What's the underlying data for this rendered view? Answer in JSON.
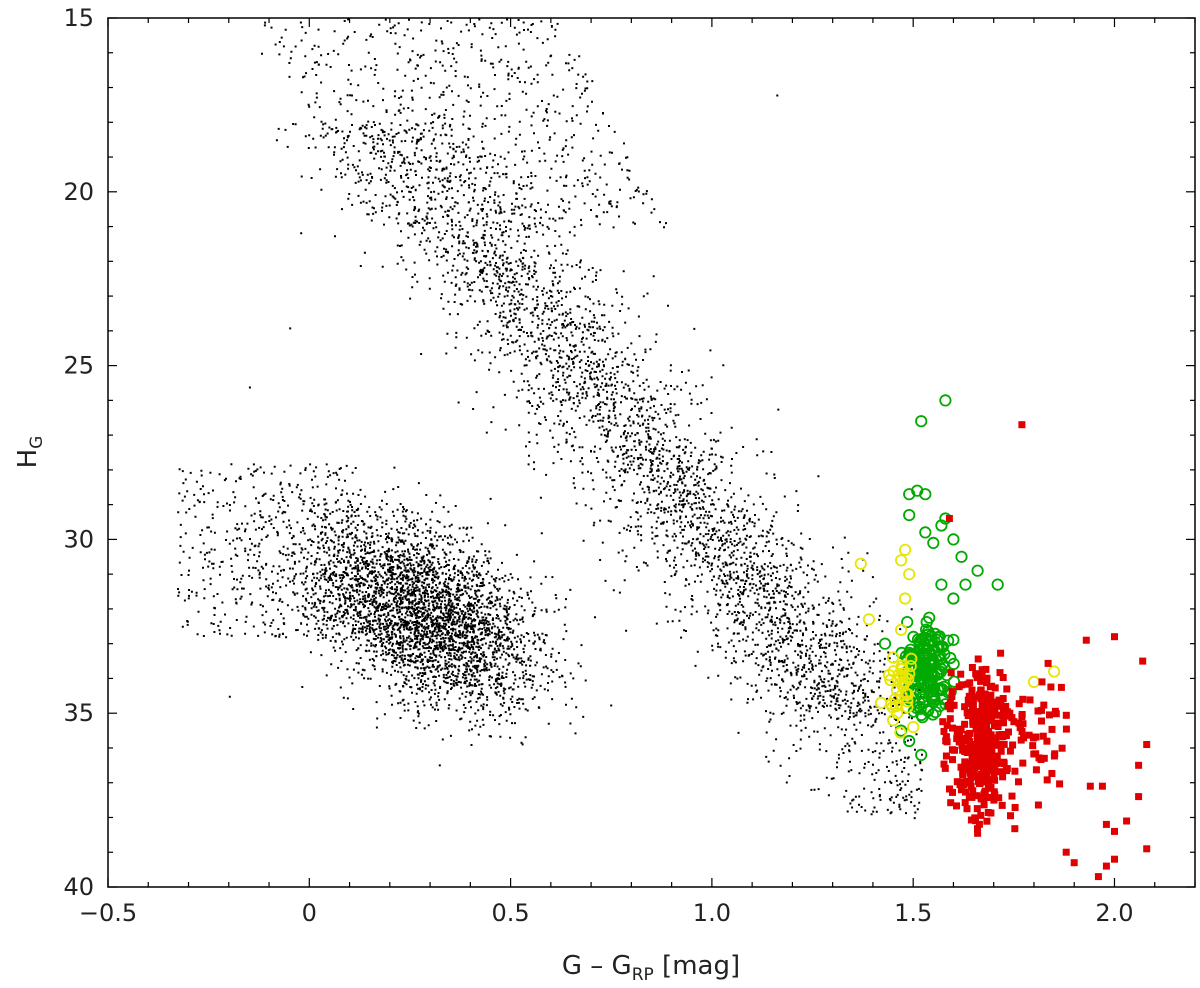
{
  "chart_data": {
    "type": "scatter",
    "title": "",
    "xlabel": {
      "base": "G – G",
      "sub": "RP",
      "unit": " [mag]"
    },
    "ylabel": {
      "base": "H",
      "sub": "G"
    },
    "xlim": [
      -0.5,
      2.2
    ],
    "ylim": [
      40,
      15
    ],
    "y_inverted": true,
    "legend": "none",
    "grid": false,
    "x_ticks": [
      {
        "value": -0.5,
        "label": "−0.5"
      },
      {
        "value": 0,
        "label": "0"
      },
      {
        "value": 0.5,
        "label": "0.5"
      },
      {
        "value": 1.0,
        "label": "1.0"
      },
      {
        "value": 1.5,
        "label": "1.5"
      },
      {
        "value": 2.0,
        "label": "2.0"
      }
    ],
    "y_ticks": [
      {
        "value": 15,
        "label": "15"
      },
      {
        "value": 20,
        "label": "20"
      },
      {
        "value": 25,
        "label": "25"
      },
      {
        "value": 30,
        "label": "30"
      },
      {
        "value": 35,
        "label": "35"
      },
      {
        "value": 40,
        "label": "40"
      }
    ],
    "series": [
      {
        "marker": "dot",
        "color": "#000000",
        "approx_count": 30000,
        "regions": [
          {
            "kind": "main-sequence",
            "x_range": [
              0.4,
              1.5
            ],
            "y_range": [
              20.5,
              35.0
            ],
            "note": "dense diagonal band"
          },
          {
            "kind": "upper-sparse",
            "x_range": [
              -0.1,
              0.9
            ],
            "y_range": [
              15.0,
              21.0
            ]
          },
          {
            "kind": "lower-left-blob",
            "x_range": [
              -0.35,
              0.8
            ],
            "y_range": [
              27.5,
              38.5
            ]
          }
        ],
        "outliers": [
          {
            "x": 1.16,
            "y": 17.2
          },
          {
            "x": 0.53,
            "y": 15.1
          },
          {
            "x": 0.35,
            "y": 15.1
          },
          {
            "x": -0.12,
            "y": 16.0
          },
          {
            "x": -0.05,
            "y": 23.9
          },
          {
            "x": -0.15,
            "y": 25.6
          },
          {
            "x": 0.6,
            "y": 15.2
          },
          {
            "x": -0.2,
            "y": 34.5
          }
        ]
      },
      {
        "marker": "open-circle",
        "color": "#00aa00",
        "points": [
          {
            "x": 1.58,
            "y": 26.0
          },
          {
            "x": 1.52,
            "y": 26.6
          },
          {
            "x": 1.49,
            "y": 28.7
          },
          {
            "x": 1.51,
            "y": 28.6
          },
          {
            "x": 1.53,
            "y": 28.7
          },
          {
            "x": 1.58,
            "y": 29.4
          },
          {
            "x": 1.49,
            "y": 29.3
          },
          {
            "x": 1.53,
            "y": 29.8
          },
          {
            "x": 1.57,
            "y": 29.6
          },
          {
            "x": 1.6,
            "y": 30.0
          },
          {
            "x": 1.55,
            "y": 30.1
          },
          {
            "x": 1.62,
            "y": 30.5
          },
          {
            "x": 1.66,
            "y": 30.9
          },
          {
            "x": 1.71,
            "y": 31.3
          },
          {
            "x": 1.63,
            "y": 31.3
          },
          {
            "x": 1.57,
            "y": 31.3
          },
          {
            "x": 1.6,
            "y": 31.7
          },
          {
            "x": 1.54,
            "y": 33.3
          },
          {
            "x": 1.43,
            "y": 33.0
          },
          {
            "x": 1.47,
            "y": 35.5
          },
          {
            "x": 1.52,
            "y": 36.2
          },
          {
            "x": 1.49,
            "y": 35.8
          }
        ],
        "cluster": {
          "x_range": [
            1.44,
            1.72
          ],
          "y_range": [
            31.5,
            36.5
          ],
          "approx_count": 160
        }
      },
      {
        "marker": "open-circle",
        "color": "#e6e600",
        "points": [
          {
            "x": 1.37,
            "y": 30.7
          },
          {
            "x": 1.39,
            "y": 32.3
          },
          {
            "x": 1.42,
            "y": 34.7
          },
          {
            "x": 1.48,
            "y": 30.3
          },
          {
            "x": 1.47,
            "y": 30.6
          },
          {
            "x": 1.49,
            "y": 31.0
          },
          {
            "x": 1.48,
            "y": 31.7
          },
          {
            "x": 1.47,
            "y": 32.6
          },
          {
            "x": 1.45,
            "y": 33.4
          },
          {
            "x": 1.44,
            "y": 33.9
          },
          {
            "x": 1.45,
            "y": 35.2
          },
          {
            "x": 1.46,
            "y": 35.0
          },
          {
            "x": 1.5,
            "y": 35.4
          },
          {
            "x": 1.85,
            "y": 33.8
          },
          {
            "x": 1.8,
            "y": 34.1
          }
        ],
        "cluster": {
          "x_range": [
            1.44,
            1.52
          ],
          "y_range": [
            32.5,
            35.6
          ],
          "approx_count": 30
        }
      },
      {
        "marker": "filled-square",
        "color": "#e00000",
        "points": [
          {
            "x": 1.77,
            "y": 26.7
          },
          {
            "x": 1.59,
            "y": 29.4
          },
          {
            "x": 2.0,
            "y": 32.8
          },
          {
            "x": 2.07,
            "y": 33.5
          },
          {
            "x": 2.08,
            "y": 35.9
          },
          {
            "x": 2.06,
            "y": 36.5
          },
          {
            "x": 2.06,
            "y": 37.4
          },
          {
            "x": 1.94,
            "y": 37.1
          },
          {
            "x": 1.97,
            "y": 37.1
          },
          {
            "x": 2.03,
            "y": 38.1
          },
          {
            "x": 1.98,
            "y": 38.2
          },
          {
            "x": 2.0,
            "y": 38.4
          },
          {
            "x": 2.08,
            "y": 38.9
          },
          {
            "x": 2.0,
            "y": 39.2
          },
          {
            "x": 1.98,
            "y": 39.4
          },
          {
            "x": 1.96,
            "y": 39.7
          },
          {
            "x": 1.88,
            "y": 39.0
          },
          {
            "x": 1.9,
            "y": 39.3
          },
          {
            "x": 1.93,
            "y": 32.9
          },
          {
            "x": 1.82,
            "y": 34.1
          }
        ],
        "cluster": {
          "x_range": [
            1.57,
            1.95
          ],
          "y_range": [
            32.0,
            40.0
          ],
          "approx_count": 420
        }
      }
    ]
  }
}
